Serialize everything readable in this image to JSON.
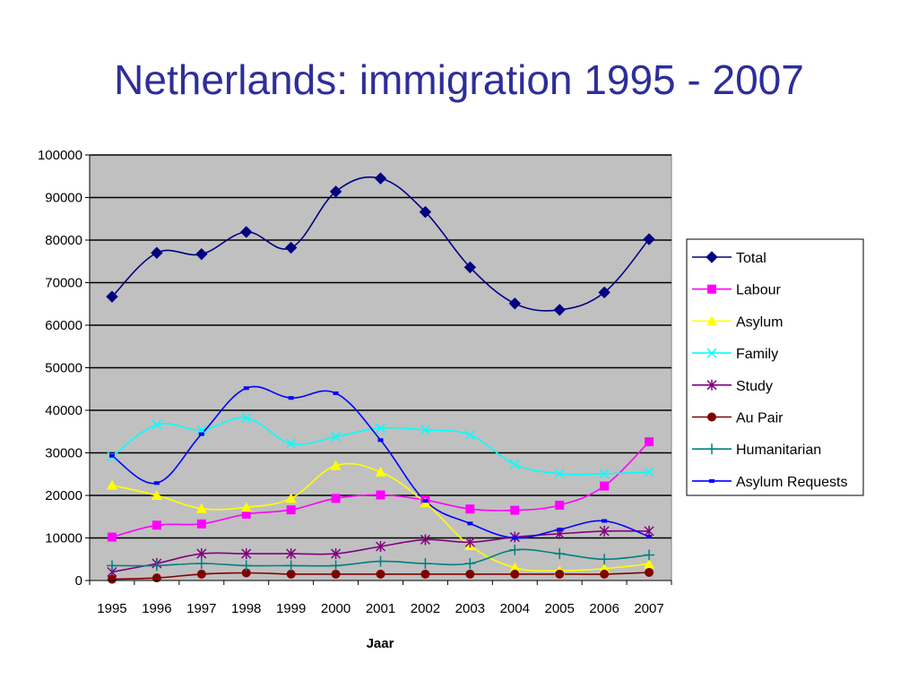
{
  "title": "Netherlands: immigration 1995 - 2007",
  "chart_data": {
    "type": "line",
    "title": "",
    "xlabel": "Jaar",
    "ylabel": "",
    "categories": [
      "1995",
      "1996",
      "1997",
      "1998",
      "1999",
      "2000",
      "2001",
      "2002",
      "2003",
      "2004",
      "2005",
      "2006",
      "2007"
    ],
    "ylim": [
      0,
      100000
    ],
    "yticks": [
      0,
      10000,
      20000,
      30000,
      40000,
      50000,
      60000,
      70000,
      80000,
      90000,
      100000
    ],
    "grid": "horizontal",
    "plot_background": "#c0c0c0",
    "legend_position": "right",
    "series": [
      {
        "name": "Total",
        "color": "#000080",
        "marker": "diamond",
        "values": [
          66700,
          77000,
          76700,
          81900,
          78200,
          91400,
          94500,
          86600,
          73600,
          65100,
          63600,
          67700,
          80200
        ]
      },
      {
        "name": "Labour",
        "color": "#ff00ff",
        "marker": "square",
        "values": [
          10200,
          13000,
          13300,
          15600,
          16600,
          19300,
          20100,
          18900,
          16800,
          16500,
          17700,
          22200,
          32600
        ]
      },
      {
        "name": "Asylum",
        "color": "#ffff00",
        "marker": "triangle",
        "values": [
          22400,
          20000,
          16900,
          17200,
          19300,
          27000,
          25500,
          18300,
          8200,
          3000,
          2300,
          2800,
          3900
        ]
      },
      {
        "name": "Family",
        "color": "#00ffff",
        "marker": "x",
        "values": [
          29100,
          36600,
          35400,
          38200,
          32200,
          33800,
          35800,
          35400,
          34200,
          27300,
          25100,
          25100,
          25500
        ]
      },
      {
        "name": "Study",
        "color": "#800080",
        "marker": "star",
        "values": [
          2000,
          4000,
          6300,
          6300,
          6300,
          6300,
          8000,
          9600,
          9000,
          10200,
          11000,
          11600,
          11600
        ]
      },
      {
        "name": "Au Pair",
        "color": "#800000",
        "marker": "circle",
        "values": [
          300,
          600,
          1500,
          1800,
          1500,
          1500,
          1500,
          1500,
          1500,
          1500,
          1500,
          1500,
          1900
        ]
      },
      {
        "name": "Humanitarian",
        "color": "#008080",
        "marker": "plus",
        "values": [
          3500,
          3500,
          4000,
          3500,
          3500,
          3500,
          4500,
          4000,
          4000,
          7200,
          6300,
          5000,
          6000
        ]
      },
      {
        "name": "Asylum Requests",
        "color": "#0000ff",
        "marker": "dash",
        "values": [
          29300,
          22900,
          34400,
          45200,
          42900,
          44000,
          33000,
          18700,
          13400,
          10000,
          12000,
          14000,
          10300
        ]
      }
    ]
  }
}
